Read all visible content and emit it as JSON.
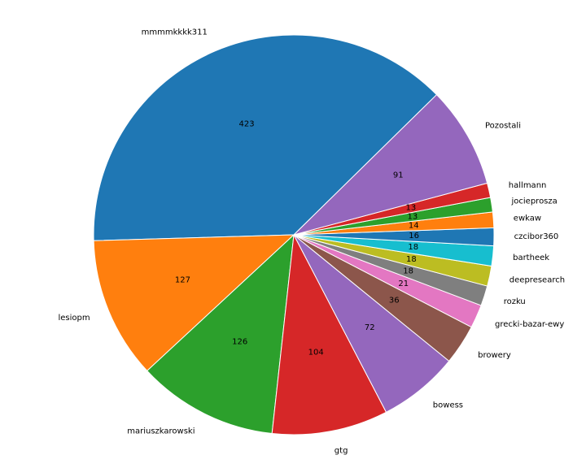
{
  "chart_data": {
    "type": "pie",
    "title": "",
    "start_angle_deg": 44.5,
    "direction": "counterclockwise",
    "slices": [
      {
        "label": "mmmmkkkk311",
        "value": 423,
        "color": "#1f77b4"
      },
      {
        "label": "lesiopm",
        "value": 127,
        "color": "#ff7f0e"
      },
      {
        "label": "mariuszkarowski",
        "value": 126,
        "color": "#2ca02c"
      },
      {
        "label": "gtg",
        "value": 104,
        "color": "#d62728"
      },
      {
        "label": "bowess",
        "value": 72,
        "color": "#9467bd"
      },
      {
        "label": "browery",
        "value": 36,
        "color": "#8c564b"
      },
      {
        "label": "grecki-bazar-ewy",
        "value": 21,
        "color": "#e377c2"
      },
      {
        "label": "rozku",
        "value": 18,
        "color": "#7f7f7f"
      },
      {
        "label": "deepresearch",
        "value": 18,
        "color": "#bcbd22"
      },
      {
        "label": "bartheek",
        "value": 18,
        "color": "#17becf"
      },
      {
        "label": "czcibor360",
        "value": 16,
        "color": "#1f77b4"
      },
      {
        "label": "ewkaw",
        "value": 14,
        "color": "#ff7f0e"
      },
      {
        "label": "jocieprosza",
        "value": 13,
        "color": "#2ca02c"
      },
      {
        "label": "hallmann",
        "value": 13,
        "color": "#d62728"
      },
      {
        "label": "Pozostali",
        "value": 91,
        "color": "#9467bd"
      }
    ]
  }
}
